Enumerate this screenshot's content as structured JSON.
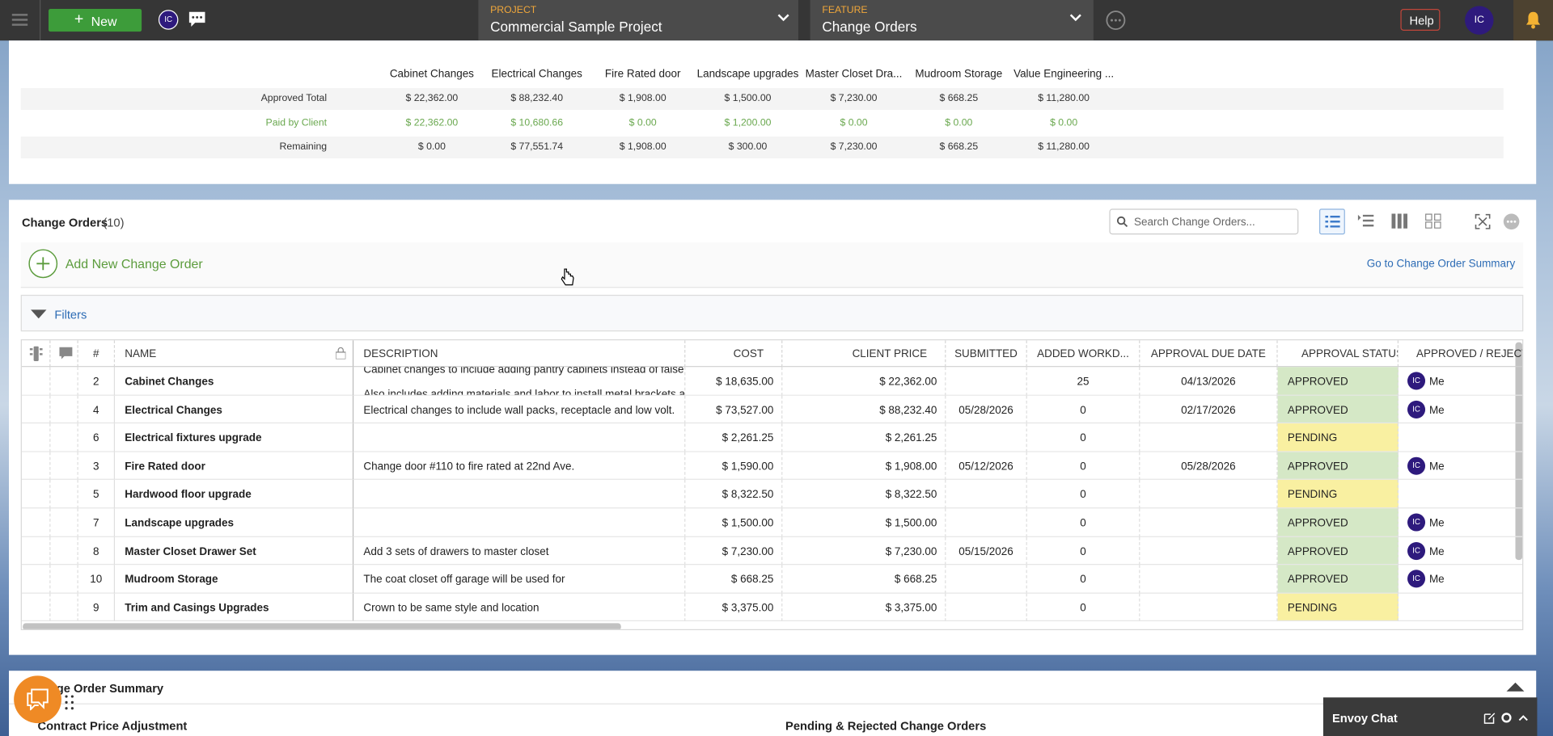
{
  "topbar": {
    "new_button": "New",
    "user_initials": "IC",
    "project_label": "PROJECT",
    "project_name": "Commercial Sample Project",
    "feature_label": "FEATURE",
    "feature_name": "Change Orders",
    "help": "Help",
    "account_initials": "IC"
  },
  "summary": {
    "columns": [
      "Cabinet Changes",
      "Electrical Changes",
      "Fire Rated door",
      "Landscape upgrades",
      "Master Closet Dra...",
      "Mudroom Storage",
      "Value Engineering ..."
    ],
    "rows": [
      {
        "label": "Approved Total",
        "color": "#333333",
        "shaded": true,
        "values": [
          "$ 22,362.00",
          "$ 88,232.40",
          "$ 1,908.00",
          "$ 1,500.00",
          "$ 7,230.00",
          "$ 668.25",
          "$ 11,280.00"
        ]
      },
      {
        "label": "Paid by Client",
        "color": "#6aa84f",
        "shaded": false,
        "values": [
          "$ 22,362.00",
          "$ 10,680.66",
          "$ 0.00",
          "$ 1,200.00",
          "$ 0.00",
          "$ 0.00",
          "$ 0.00"
        ]
      },
      {
        "label": "Remaining",
        "color": "#333333",
        "shaded": true,
        "values": [
          "$ 0.00",
          "$ 77,551.74",
          "$ 1,908.00",
          "$ 300.00",
          "$ 7,230.00",
          "$ 668.25",
          "$ 11,280.00"
        ]
      }
    ]
  },
  "panel": {
    "title": "Change Orders",
    "count": "(10)",
    "search_placeholder": "Search Change Orders...",
    "add_new": "Add New Change Order",
    "summary_link": "Go to Change Order Summary",
    "filters": "Filters"
  },
  "grid": {
    "columns": [
      "#",
      "NAME",
      "DESCRIPTION",
      "COST",
      "CLIENT PRICE",
      "SUBMITTED",
      "ADDED WORKD...",
      "APPROVAL DUE DATE",
      "APPROVAL STATUS",
      "APPROVED / REJECTE..."
    ],
    "status_palette": {
      "APPROVED": "#d5e8c6",
      "PENDING": "#f9f0a1"
    },
    "rows": [
      {
        "number": 2,
        "name": "Cabinet Changes",
        "description": "Cabinet changes to include adding pantry cabinets instead of false f",
        "description_line2": "Also includes adding materials and labor to install metal brackets at",
        "cost": "$ 18,635.00",
        "client_price": "$ 22,362.00",
        "workdays": 25,
        "due": "04/13/2026",
        "status": "APPROVED",
        "avatar": "IC",
        "approver": "Me"
      },
      {
        "number": 4,
        "name": "Electrical Changes",
        "description": "Electrical changes to include wall packs, receptacle and low volt.",
        "cost": "$ 73,527.00",
        "client_price": "$ 88,232.40",
        "submitted": "05/28/2026",
        "workdays": 0,
        "due": "02/17/2026",
        "status": "APPROVED",
        "avatar": "IC",
        "approver": "Me"
      },
      {
        "number": 6,
        "name": "Electrical fixtures upgrade",
        "cost": "$ 2,261.25",
        "client_price": "$ 2,261.25",
        "workdays": 0,
        "status": "PENDING"
      },
      {
        "number": 3,
        "name": "Fire Rated door",
        "description": "Change door #110 to fire rated at 22nd Ave.",
        "cost": "$ 1,590.00",
        "client_price": "$ 1,908.00",
        "submitted": "05/12/2026",
        "workdays": 0,
        "due": "05/28/2026",
        "status": "APPROVED",
        "avatar": "IC",
        "approver": "Me"
      },
      {
        "number": 5,
        "name": "Hardwood floor upgrade",
        "cost": "$ 8,322.50",
        "client_price": "$ 8,322.50",
        "workdays": 0,
        "status": "PENDING"
      },
      {
        "number": 7,
        "name": "Landscape upgrades",
        "cost": "$ 1,500.00",
        "client_price": "$ 1,500.00",
        "workdays": 0,
        "status": "APPROVED",
        "avatar": "IC",
        "approver": "Me"
      },
      {
        "number": 8,
        "name": "Master Closet Drawer Set",
        "description": "Add 3 sets of drawers to master closet",
        "cost": "$ 7,230.00",
        "client_price": "$ 7,230.00",
        "submitted": "05/15/2026",
        "workdays": 0,
        "status": "APPROVED",
        "avatar": "IC",
        "approver": "Me"
      },
      {
        "number": 10,
        "name": "Mudroom Storage",
        "description": "The coat closet off garage will be used for",
        "cost": "$ 668.25",
        "client_price": "$ 668.25",
        "workdays": 0,
        "status": "APPROVED",
        "avatar": "IC",
        "approver": "Me"
      },
      {
        "number": 9,
        "name": "Trim and Casings Upgrades",
        "description": "Crown to be same style and location",
        "cost": "$ 3,375.00",
        "client_price": "$ 3,375.00",
        "workdays": 0,
        "status": "PENDING"
      }
    ]
  },
  "bottom": {
    "title": "Change Order Summary",
    "left_heading": "Contract Price Adjustment",
    "right_heading": "Pending & Rejected Change Orders"
  },
  "chat": {
    "title": "Envoy Chat"
  }
}
